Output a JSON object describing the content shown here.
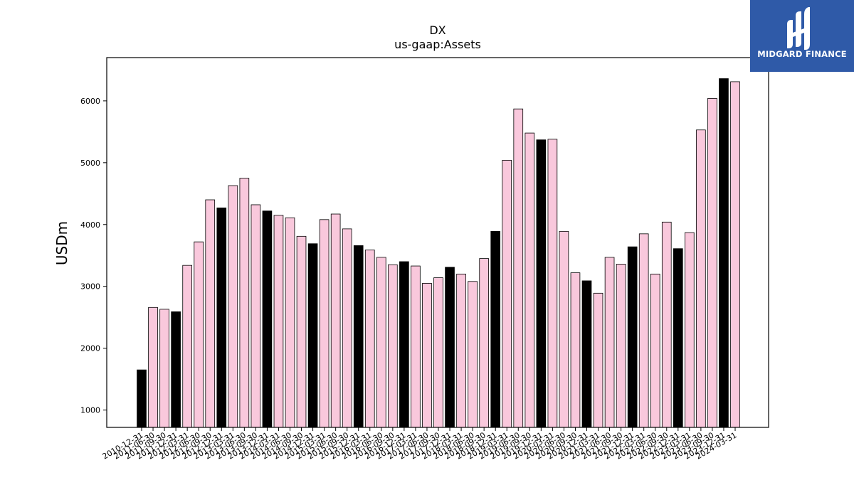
{
  "chart_data": {
    "type": "bar",
    "title": "DX",
    "subtitle": "us-gaap:Assets",
    "xlabel": "",
    "ylabel": "USDm",
    "ylim": [
      720,
      6700
    ],
    "yticks": [
      1000,
      2000,
      3000,
      4000,
      5000,
      6000
    ],
    "colors": {
      "annual": "#000000",
      "quarterly": "#f9c8dc",
      "edge": "#000000"
    },
    "categories": [
      "2010-12-31",
      "2011-06-30",
      "2011-09-30",
      "2011-12-31",
      "2012-03-31",
      "2012-06-30",
      "2012-09-30",
      "2012-12-31",
      "2013-03-31",
      "2013-06-30",
      "2013-09-30",
      "2013-12-31",
      "2014-03-31",
      "2014-06-30",
      "2014-09-30",
      "2014-12-31",
      "2015-03-31",
      "2015-06-30",
      "2015-09-30",
      "2015-12-31",
      "2016-03-31",
      "2016-06-30",
      "2016-09-30",
      "2016-12-31",
      "2017-03-31",
      "2017-06-30",
      "2017-09-30",
      "2017-12-31",
      "2018-03-31",
      "2018-06-30",
      "2018-09-30",
      "2018-12-31",
      "2019-03-31",
      "2019-06-30",
      "2019-09-30",
      "2019-12-31",
      "2020-03-31",
      "2020-06-30",
      "2020-09-30",
      "2020-12-31",
      "2021-03-31",
      "2021-06-30",
      "2021-09-30",
      "2021-12-31",
      "2022-03-31",
      "2022-06-30",
      "2022-09-30",
      "2022-12-31",
      "2023-03-31",
      "2023-06-30",
      "2023-09-30",
      "2023-12-31",
      "2024-03-31"
    ],
    "values": [
      1650,
      2660,
      2630,
      2590,
      3340,
      3720,
      4400,
      4270,
      4630,
      4750,
      4320,
      4220,
      4150,
      4110,
      3810,
      3690,
      4080,
      4170,
      3930,
      3660,
      3590,
      3470,
      3350,
      3400,
      3330,
      3050,
      3140,
      3310,
      3200,
      3080,
      3450,
      3890,
      5040,
      5870,
      5480,
      5370,
      5380,
      3890,
      3220,
      3090,
      2890,
      3470,
      3360,
      3640,
      3850,
      3200,
      4040,
      3610,
      3870,
      5530,
      6040,
      6360,
      6310
    ],
    "annual": [
      true,
      false,
      false,
      true,
      false,
      false,
      false,
      true,
      false,
      false,
      false,
      true,
      false,
      false,
      false,
      true,
      false,
      false,
      false,
      true,
      false,
      false,
      false,
      true,
      false,
      false,
      false,
      true,
      false,
      false,
      false,
      true,
      false,
      false,
      false,
      true,
      false,
      false,
      false,
      true,
      false,
      false,
      false,
      true,
      false,
      false,
      false,
      true,
      false,
      false,
      false,
      true,
      false
    ]
  },
  "watermark": {
    "brand_text": "MIDGARD FINANCE",
    "icon": "midgard-logo-icon"
  }
}
